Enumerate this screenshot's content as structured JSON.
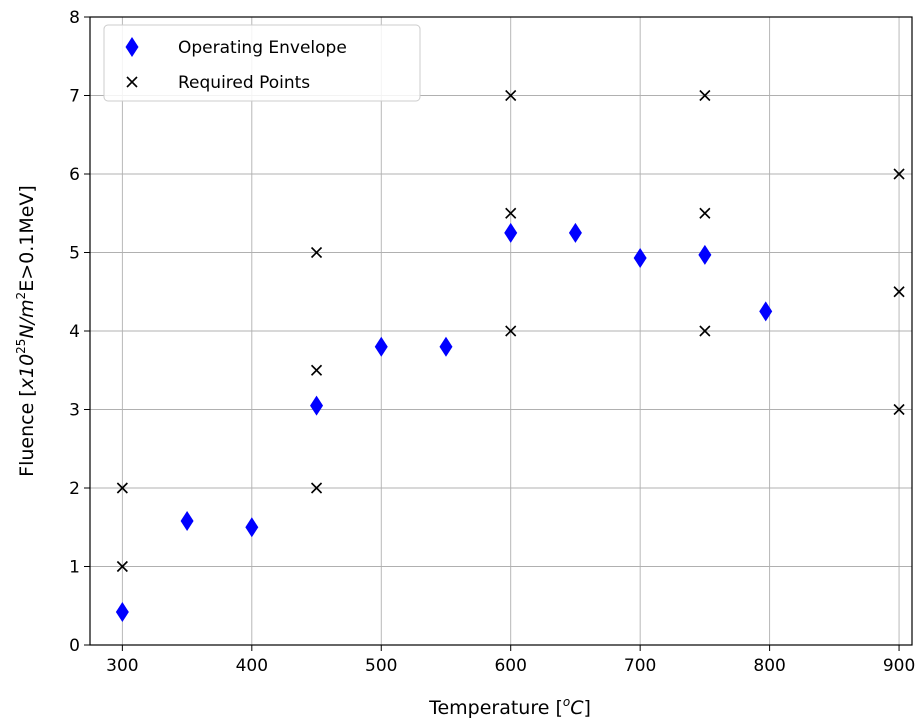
{
  "chart_data": {
    "type": "scatter",
    "title": "",
    "xlabel": {
      "main": "Temperature [",
      "sup": "o",
      "italic": "C",
      "close": "]"
    },
    "ylabel": {
      "prefix": "Fluence [",
      "italic_x": "x",
      "base": "10",
      "exp": "25",
      "unit": "N/m",
      "unit_exp": "2",
      "suffix": "E>0.1MeV]"
    },
    "xlim": [
      275,
      910
    ],
    "ylim": [
      0,
      8
    ],
    "xticks": [
      300,
      400,
      500,
      600,
      700,
      800,
      900
    ],
    "yticks": [
      0,
      1,
      2,
      3,
      4,
      5,
      6,
      7,
      8
    ],
    "grid": true,
    "legend_position": "top-left",
    "series": [
      {
        "name": "Operating Envelope",
        "marker": "diamond",
        "color": "#0000ff",
        "points": [
          [
            300,
            0.42
          ],
          [
            350,
            1.58
          ],
          [
            400,
            1.5
          ],
          [
            450,
            3.05
          ],
          [
            500,
            3.8
          ],
          [
            550,
            3.8
          ],
          [
            600,
            5.25
          ],
          [
            650,
            5.25
          ],
          [
            700,
            4.93
          ],
          [
            750,
            4.97
          ],
          [
            797,
            4.25
          ]
        ]
      },
      {
        "name": "Required Points",
        "marker": "x",
        "color": "#000000",
        "points": [
          [
            300,
            1
          ],
          [
            300,
            2
          ],
          [
            450,
            2
          ],
          [
            450,
            3.5
          ],
          [
            450,
            5
          ],
          [
            600,
            4
          ],
          [
            600,
            5.5
          ],
          [
            600,
            7
          ],
          [
            750,
            4
          ],
          [
            750,
            5.5
          ],
          [
            750,
            7
          ],
          [
            900,
            3
          ],
          [
            900,
            4.5
          ],
          [
            900,
            6
          ]
        ]
      }
    ]
  }
}
